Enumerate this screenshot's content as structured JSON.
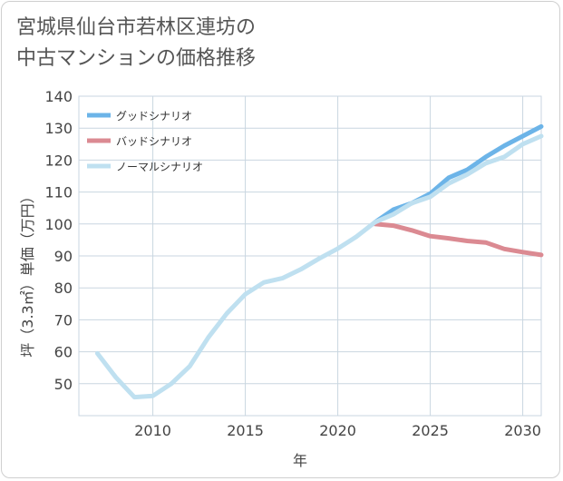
{
  "title_lines": [
    "宮城県仙台市若林区連坊の",
    "中古マンションの価格推移"
  ],
  "chart_data": {
    "type": "line",
    "title": "宮城県仙台市若林区連坊の中古マンションの価格推移",
    "xlabel": "年",
    "ylabel": "坪（3.3㎡）単価（万円）",
    "xlim": [
      2006,
      2031
    ],
    "ylim": [
      40,
      140
    ],
    "xticks": [
      2010,
      2015,
      2020,
      2025,
      2030
    ],
    "yticks": [
      50,
      60,
      70,
      80,
      90,
      100,
      110,
      120,
      130,
      140
    ],
    "grid": true,
    "legend_position": "top-left",
    "series": [
      {
        "name": "グッドシナリオ",
        "color": "#6cb4e8",
        "x": [
          2022,
          2023,
          2024,
          2025,
          2026,
          2027,
          2028,
          2029,
          2030,
          2031
        ],
        "y": [
          100.5,
          104.5,
          106.5,
          109.5,
          114.5,
          117.0,
          121.0,
          124.5,
          127.5,
          130.5
        ]
      },
      {
        "name": "バッドシナリオ",
        "color": "#db8a92",
        "x": [
          2022,
          2023,
          2024,
          2025,
          2026,
          2027,
          2028,
          2029,
          2030,
          2031
        ],
        "y": [
          100.0,
          99.5,
          98.0,
          96.2,
          95.5,
          94.7,
          94.2,
          92.2,
          91.2,
          90.3
        ]
      },
      {
        "name": "ノーマルシナリオ",
        "color": "#bfe0f0",
        "x": [
          2007,
          2008,
          2009,
          2010,
          2011,
          2012,
          2013,
          2014,
          2015,
          2016,
          2017,
          2018,
          2019,
          2020,
          2021,
          2022,
          2023,
          2024,
          2025,
          2026,
          2027,
          2028,
          2029,
          2030,
          2031
        ],
        "y": [
          59.5,
          52.0,
          45.8,
          46.2,
          50.0,
          55.5,
          64.5,
          72.0,
          78.0,
          81.7,
          83.0,
          85.8,
          89.2,
          92.3,
          96.0,
          100.5,
          103.0,
          106.5,
          108.5,
          112.7,
          115.5,
          119.0,
          121.0,
          125.0,
          127.5
        ]
      }
    ]
  }
}
